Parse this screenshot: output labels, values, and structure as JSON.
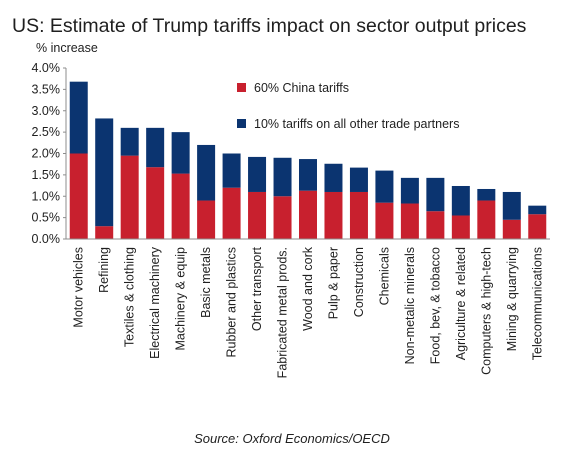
{
  "chart_data": {
    "type": "bar",
    "stacked": true,
    "title": "US: Estimate of Trump tariffs impact on sector output prices",
    "unit_label": "% increase",
    "source": "Source: Oxford Economics/OECD",
    "categories": [
      "Motor vehicles",
      "Refining",
      "Textiles & clothing",
      "Electrical machinery",
      "Machinery & equip",
      "Basic metals",
      "Rubber and plastics",
      "Other transport",
      "Fabricated metal prods.",
      "Wood and cork",
      "Pulp & paper",
      "Construction",
      "Chemicals",
      "Non-metalic minerals",
      "Food, bev, & tobacco",
      "Agriculture & related",
      "Computers & high-tech",
      "Mining & quarrying",
      "Telecommunications"
    ],
    "series": [
      {
        "name": "60% China tariffs",
        "color": "#c8202e",
        "values": [
          2.0,
          0.3,
          1.95,
          1.68,
          1.53,
          0.9,
          1.2,
          1.1,
          1.0,
          1.13,
          1.1,
          1.1,
          0.85,
          0.83,
          0.65,
          0.55,
          0.9,
          0.45,
          0.58
        ]
      },
      {
        "name": "10% tariffs on all other trade partners",
        "color": "#0b3470",
        "values": [
          1.68,
          2.52,
          0.65,
          0.92,
          0.97,
          1.3,
          0.8,
          0.82,
          0.9,
          0.74,
          0.66,
          0.57,
          0.75,
          0.6,
          0.78,
          0.69,
          0.27,
          0.65,
          0.2
        ]
      }
    ],
    "ylim": [
      0,
      4.0
    ],
    "yticks": [
      "0.0%",
      "0.5%",
      "1.0%",
      "1.5%",
      "2.0%",
      "2.5%",
      "3.0%",
      "3.5%",
      "4.0%"
    ],
    "legend_position": "top-right",
    "grid": false
  }
}
